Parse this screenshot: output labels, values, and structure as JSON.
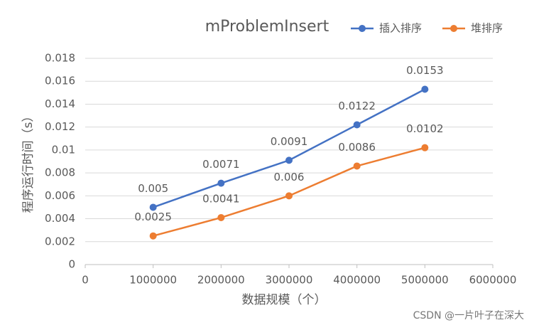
{
  "chart_data": {
    "type": "line",
    "title": "mProblemInsert",
    "x": [
      1000000,
      2000000,
      3000000,
      4000000,
      5000000
    ],
    "series": [
      {
        "name": "插入排序",
        "color": "#4472c4",
        "values": [
          0.005,
          0.0071,
          0.0091,
          0.0122,
          0.0153
        ]
      },
      {
        "name": "堆排序",
        "color": "#ed7d31",
        "values": [
          0.0025,
          0.0041,
          0.006,
          0.0086,
          0.0102
        ]
      }
    ],
    "xlim": [
      0,
      6000000
    ],
    "xticks": [
      0,
      1000000,
      2000000,
      3000000,
      4000000,
      5000000,
      6000000
    ],
    "ylim": [
      0,
      0.018
    ],
    "yticks": [
      0,
      0.002,
      0.004,
      0.006,
      0.008,
      0.01,
      0.012,
      0.014,
      0.016,
      0.018
    ],
    "x_label": "数据规模（个）",
    "y_label": "程序运行时间（s）",
    "grid": true,
    "legend": "top-right",
    "watermark": "CSDN @一片叶子在深大"
  }
}
